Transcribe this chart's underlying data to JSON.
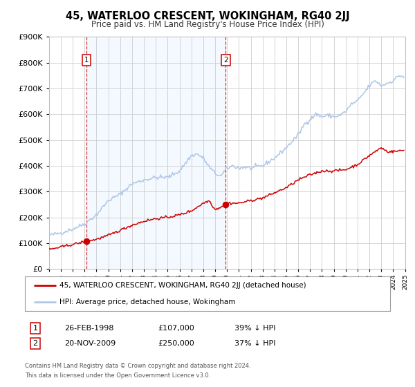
{
  "title": "45, WATERLOO CRESCENT, WOKINGHAM, RG40 2JJ",
  "subtitle": "Price paid vs. HM Land Registry's House Price Index (HPI)",
  "legend_entry1": "45, WATERLOO CRESCENT, WOKINGHAM, RG40 2JJ (detached house)",
  "legend_entry2": "HPI: Average price, detached house, Wokingham",
  "annotation1_label": "1",
  "annotation1_date": "26-FEB-1998",
  "annotation1_price": "£107,000",
  "annotation1_hpi": "39% ↓ HPI",
  "annotation2_label": "2",
  "annotation2_date": "20-NOV-2009",
  "annotation2_price": "£250,000",
  "annotation2_hpi": "37% ↓ HPI",
  "footnote1": "Contains HM Land Registry data © Crown copyright and database right 2024.",
  "footnote2": "This data is licensed under the Open Government Licence v3.0.",
  "transaction1_year": 1998.15,
  "transaction1_value": 107000,
  "transaction2_year": 2009.89,
  "transaction2_value": 250000,
  "hpi_color": "#aec6e8",
  "price_color": "#cc0000",
  "background_color": "#ffffff",
  "grid_color": "#cccccc",
  "vline_color": "#cc0000",
  "shade_color": "#ddeeff",
  "ylim_min": 0,
  "ylim_max": 900000,
  "xlabel_start": 1995,
  "xlabel_end": 2025,
  "hpi_base_points_years": [
    1995.0,
    1996.0,
    1997.0,
    1998.0,
    1999.0,
    2000.0,
    2001.0,
    2002.0,
    2003.0,
    2004.0,
    2005.0,
    2006.0,
    2007.0,
    2007.5,
    2008.0,
    2008.5,
    2009.0,
    2009.5,
    2010.0,
    2010.5,
    2011.0,
    2011.5,
    2012.0,
    2013.0,
    2014.0,
    2015.0,
    2016.0,
    2016.5,
    2017.0,
    2017.5,
    2018.0,
    2018.5,
    2019.0,
    2019.5,
    2020.0,
    2020.5,
    2021.0,
    2021.5,
    2022.0,
    2022.5,
    2023.0,
    2023.5,
    2024.0,
    2024.5,
    2024.9
  ],
  "hpi_base_points_vals": [
    130000,
    140000,
    155000,
    175000,
    210000,
    265000,
    290000,
    330000,
    345000,
    355000,
    355000,
    380000,
    440000,
    445000,
    430000,
    395000,
    370000,
    360000,
    390000,
    400000,
    390000,
    395000,
    390000,
    400000,
    430000,
    470000,
    520000,
    560000,
    580000,
    600000,
    590000,
    595000,
    590000,
    595000,
    610000,
    640000,
    650000,
    680000,
    710000,
    730000,
    710000,
    720000,
    730000,
    750000,
    745000
  ],
  "price_base_points_years": [
    1995.0,
    1996.0,
    1997.0,
    1998.15,
    1999.0,
    2000.0,
    2001.0,
    2002.0,
    2003.0,
    2004.0,
    2005.0,
    2006.0,
    2007.0,
    2008.0,
    2008.5,
    2009.0,
    2009.89,
    2010.0,
    2011.0,
    2012.0,
    2013.0,
    2014.0,
    2015.0,
    2016.0,
    2017.0,
    2018.0,
    2019.0,
    2020.0,
    2021.0,
    2022.0,
    2023.0,
    2023.5,
    2024.0,
    2024.9
  ],
  "price_base_points_vals": [
    75000,
    85000,
    95000,
    107000,
    115000,
    130000,
    150000,
    170000,
    185000,
    195000,
    200000,
    210000,
    225000,
    255000,
    265000,
    230000,
    250000,
    255000,
    255000,
    265000,
    275000,
    295000,
    315000,
    345000,
    365000,
    380000,
    380000,
    385000,
    405000,
    440000,
    470000,
    455000,
    455000,
    460000
  ]
}
